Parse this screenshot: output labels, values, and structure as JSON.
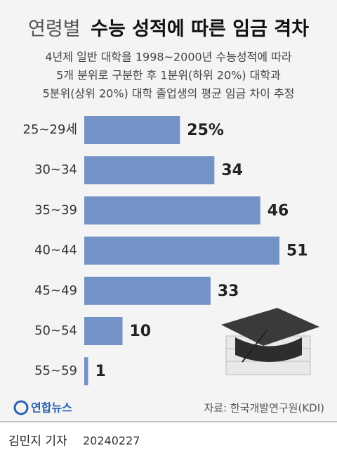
{
  "chart_data": {
    "type": "bar",
    "title_light": "연령별",
    "title_bold": "수능 성적에 따른 임금 격차",
    "subtitle": [
      "4년제 일반 대학을 1998~2000년 수능성적에 따라",
      "5개 분위로 구분한 후 1분위(하위 20%) 대학과",
      "5분위(상위 20%) 대학 졸업생의 평균 임금 차이 추정"
    ],
    "categories": [
      "25~29세",
      "30~34",
      "35~39",
      "40~44",
      "45~49",
      "50~54",
      "55~59"
    ],
    "values": [
      25,
      34,
      46,
      51,
      33,
      10,
      1
    ],
    "value_labels": [
      "25%",
      "34",
      "46",
      "51",
      "33",
      "10",
      "1"
    ],
    "color": "#7393c6",
    "logo": "연합뉴스",
    "source": "자료: 한국개발연구원(KDI)",
    "byline": "김민지 기자",
    "date": "20240227"
  }
}
